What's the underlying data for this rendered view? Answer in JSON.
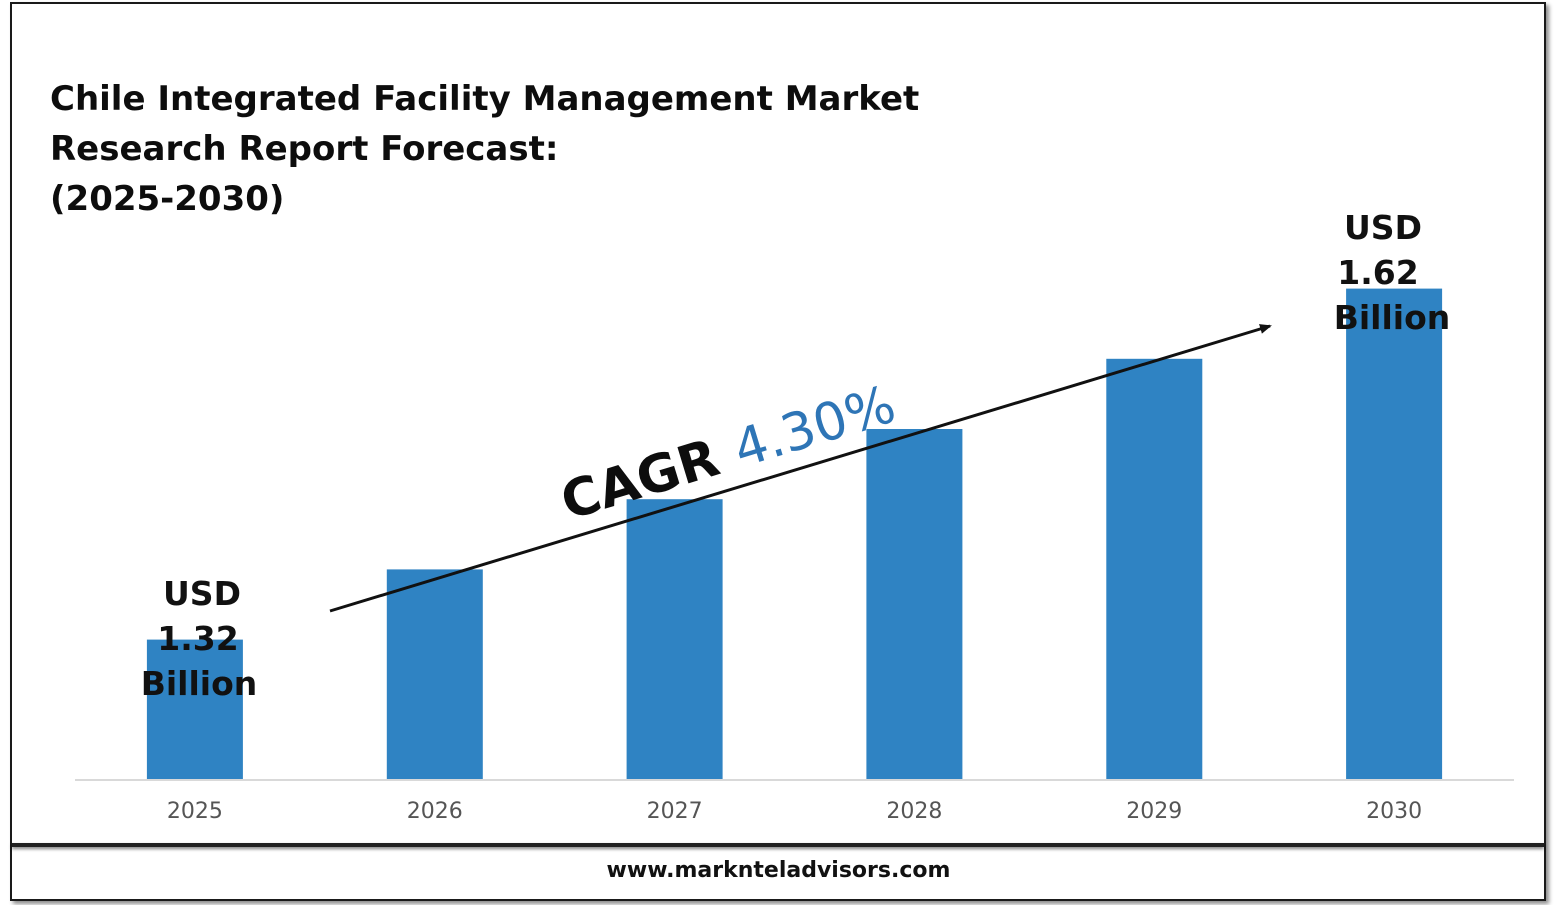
{
  "title_lines": [
    "Chile Integrated Facility Management Market",
    "Research Report Forecast:",
    "(2025-2030)"
  ],
  "footer": {
    "website": "www.marknteladvisors.com"
  },
  "colors": {
    "bar": "#2f83c3",
    "cagr_value": "#2e75b6",
    "axis": "#d9d9d9"
  },
  "annotations": {
    "start": {
      "line1": "USD",
      "line2": "1.32",
      "line3": "Billion"
    },
    "end": {
      "line1": "USD",
      "line2": "1.62",
      "line3": "Billion"
    },
    "cagr": {
      "label": "CAGR",
      "value": "4.30%"
    }
  },
  "chart_data": {
    "type": "bar",
    "categories": [
      "2025",
      "2026",
      "2027",
      "2028",
      "2029",
      "2030"
    ],
    "series": [
      {
        "values": [
          1.32,
          1.38,
          1.44,
          1.5,
          1.56,
          1.62
        ]
      }
    ],
    "ylim": [
      1.2,
      1.7
    ],
    "grid": false,
    "legend": "none"
  }
}
